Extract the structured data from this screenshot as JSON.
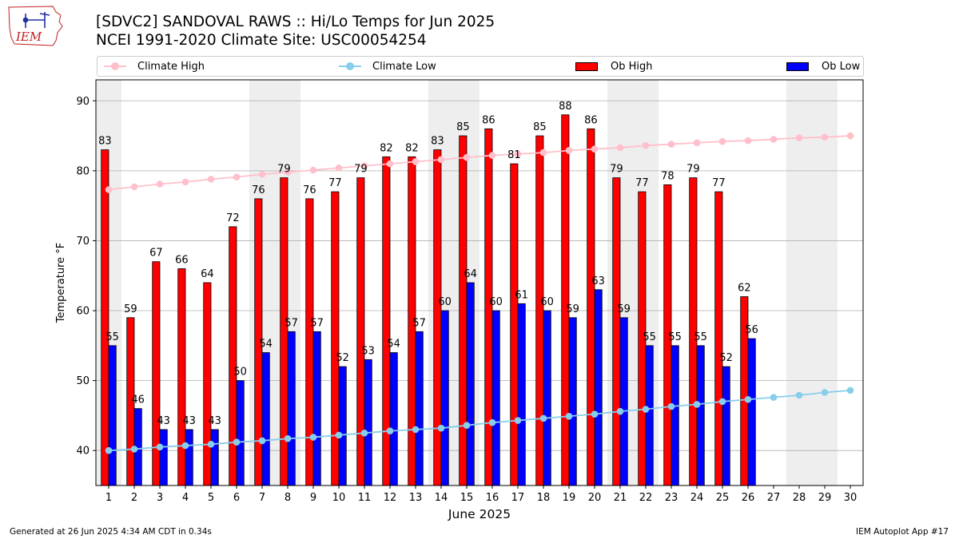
{
  "title": {
    "line1": "[SDVC2] SANDOVAL RAWS :: Hi/Lo Temps for Jun 2025",
    "line2": "NCEI 1991-2020 Climate Site: USC00054254"
  },
  "logo": {
    "text": "IEM",
    "icon": "iem-iowa-logo-icon"
  },
  "legend": {
    "climate_high": "Climate High",
    "climate_low": "Climate Low",
    "ob_high": "Ob High",
    "ob_low": "Ob Low"
  },
  "footer": {
    "left": "Generated at 26 Jun 2025 4:34 AM CDT in 0.34s",
    "right": "IEM Autoplot App #17"
  },
  "colors": {
    "climate_high": "#ffc0cb",
    "climate_low": "#87ceeb",
    "ob_high": "#ff0000",
    "ob_low": "#0000ff",
    "weekend_band": "#eeeeee",
    "grid": "#b0b0b0"
  },
  "chart_data": {
    "type": "bar",
    "title": "[SDVC2] SANDOVAL RAWS :: Hi/Lo Temps for Jun 2025",
    "xlabel": "June 2025",
    "ylabel": "Temperature °F",
    "ylim": [
      35,
      93
    ],
    "yticks": [
      40,
      50,
      60,
      70,
      80,
      90
    ],
    "grid": true,
    "legend_position": "top",
    "categories": [
      "1",
      "2",
      "3",
      "4",
      "5",
      "6",
      "7",
      "8",
      "9",
      "10",
      "11",
      "12",
      "13",
      "14",
      "15",
      "16",
      "17",
      "18",
      "19",
      "20",
      "21",
      "22",
      "23",
      "24",
      "25",
      "26",
      "27",
      "28",
      "29",
      "30"
    ],
    "shaded_days": [
      1,
      7,
      8,
      14,
      15,
      21,
      22,
      28,
      29
    ],
    "series": [
      {
        "name": "Ob High",
        "kind": "bar",
        "values": [
          83,
          59,
          67,
          66,
          64,
          72,
          76,
          79,
          76,
          77,
          79,
          82,
          82,
          83,
          85,
          86,
          81,
          85,
          88,
          86,
          79,
          77,
          78,
          79,
          77,
          62,
          null,
          null,
          null,
          null
        ]
      },
      {
        "name": "Ob Low",
        "kind": "bar",
        "values": [
          55,
          46,
          43,
          43,
          43,
          50,
          54,
          57,
          57,
          52,
          53,
          54,
          57,
          60,
          64,
          60,
          61,
          60,
          59,
          63,
          59,
          55,
          55,
          55,
          52,
          56,
          null,
          null,
          null,
          null
        ]
      },
      {
        "name": "Climate High",
        "kind": "line",
        "values": [
          77.3,
          77.7,
          78.1,
          78.4,
          78.8,
          79.1,
          79.5,
          79.8,
          80.1,
          80.4,
          80.7,
          81.0,
          81.3,
          81.6,
          81.9,
          82.2,
          82.4,
          82.6,
          82.9,
          83.1,
          83.3,
          83.6,
          83.8,
          84.0,
          84.2,
          84.3,
          84.5,
          84.7,
          84.8,
          85.0
        ]
      },
      {
        "name": "Climate Low",
        "kind": "line",
        "values": [
          40.0,
          40.2,
          40.5,
          40.7,
          40.9,
          41.2,
          41.4,
          41.7,
          41.9,
          42.2,
          42.5,
          42.8,
          43.0,
          43.2,
          43.6,
          44.0,
          44.3,
          44.6,
          44.9,
          45.2,
          45.6,
          45.9,
          46.3,
          46.6,
          47.0,
          47.3,
          47.6,
          47.9,
          48.3,
          48.6
        ]
      }
    ]
  }
}
